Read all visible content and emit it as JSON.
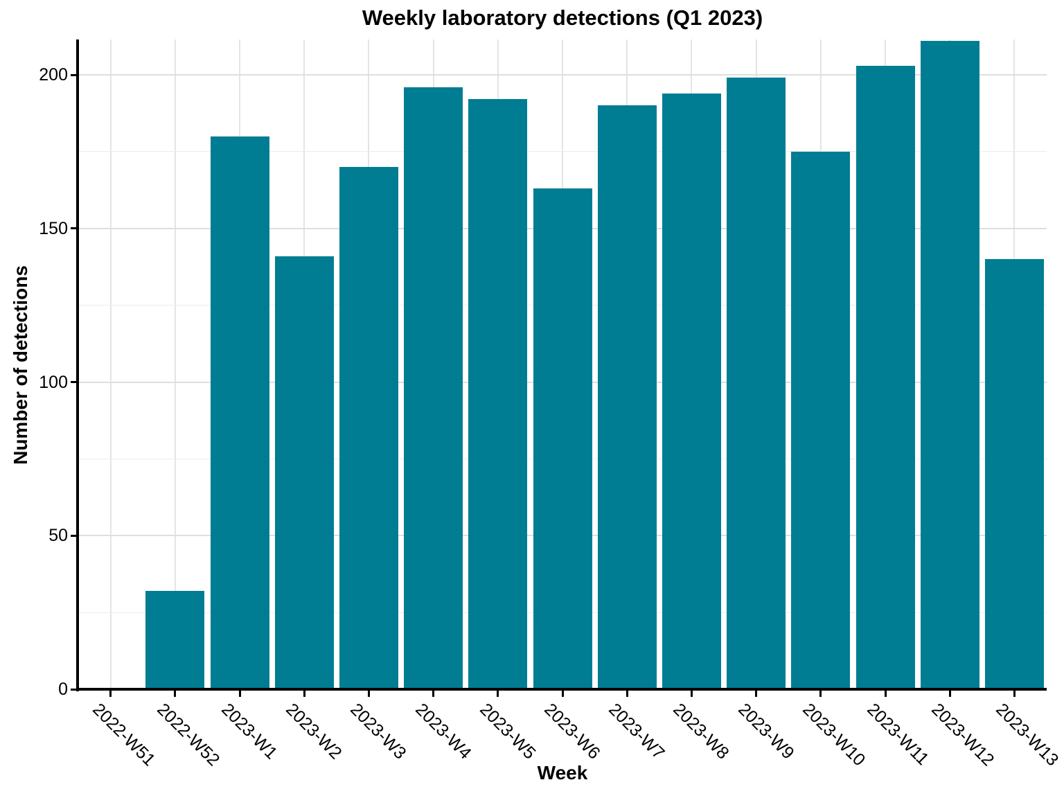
{
  "chart_data": {
    "type": "bar",
    "title": "Weekly laboratory detections (Q1 2023)",
    "xlabel": "Week",
    "ylabel": "Number of detections",
    "categories": [
      "2022-W51",
      "2022-W52",
      "2023-W1",
      "2023-W2",
      "2023-W3",
      "2023-W4",
      "2023-W5",
      "2023-W6",
      "2023-W7",
      "2023-W8",
      "2023-W9",
      "2023-W10",
      "2023-W11",
      "2023-W12",
      "2023-W13"
    ],
    "values": [
      0,
      32,
      180,
      141,
      170,
      196,
      192,
      163,
      190,
      194,
      199,
      175,
      203,
      211,
      140
    ],
    "ylim": [
      0,
      211.5
    ],
    "yticks": [
      0,
      50,
      100,
      150,
      200
    ],
    "yticks_minor": [
      25,
      75,
      125,
      175
    ],
    "grid": "on",
    "legend": "none",
    "colors": {
      "bar": "#007d92",
      "grid_major": "#dedede",
      "grid_minor": "#ececec",
      "axis": "#000000",
      "background": "#ffffff"
    }
  }
}
